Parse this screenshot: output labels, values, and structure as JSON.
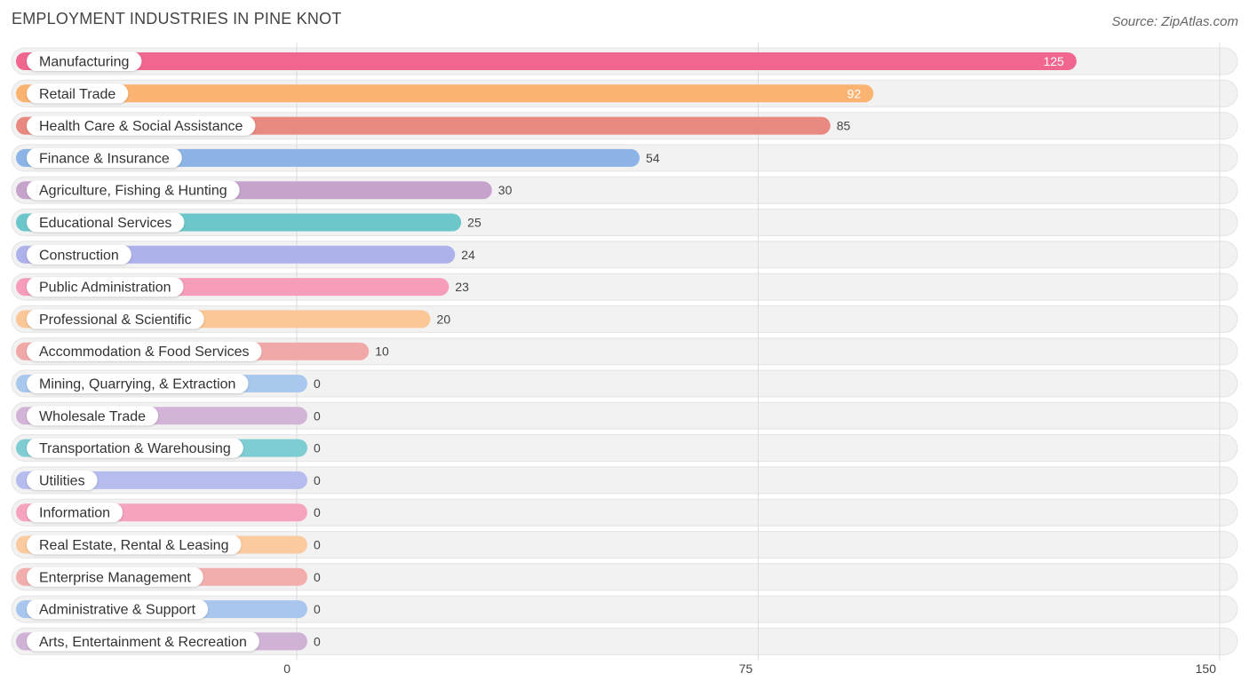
{
  "header": {
    "title": "EMPLOYMENT INDUSTRIES IN PINE KNOT",
    "source": "Source: ZipAtlas.com"
  },
  "chart_data": {
    "type": "bar",
    "orientation": "horizontal",
    "title": "EMPLOYMENT INDUSTRIES IN PINE KNOT",
    "categories": [
      "Manufacturing",
      "Retail Trade",
      "Health Care & Social Assistance",
      "Finance & Insurance",
      "Agriculture, Fishing & Hunting",
      "Educational Services",
      "Construction",
      "Public Administration",
      "Professional & Scientific",
      "Accommodation & Food Services",
      "Mining, Quarrying, & Extraction",
      "Wholesale Trade",
      "Transportation & Warehousing",
      "Utilities",
      "Information",
      "Real Estate, Rental & Leasing",
      "Enterprise Management",
      "Administrative & Support",
      "Arts, Entertainment & Recreation"
    ],
    "values": [
      125,
      92,
      85,
      54,
      30,
      25,
      24,
      23,
      20,
      10,
      0,
      0,
      0,
      0,
      0,
      0,
      0,
      0,
      0
    ],
    "value_labels": [
      "125",
      "92",
      "85",
      "54",
      "30",
      "25",
      "24",
      "23",
      "20",
      "10",
      "0",
      "0",
      "0",
      "0",
      "0",
      "0",
      "0",
      "0",
      "0"
    ],
    "colors": [
      "#f0668f",
      "#fbb371",
      "#e98a82",
      "#8db4e6",
      "#c5a3cb",
      "#6cc7cb",
      "#aeb2ea",
      "#f69dba",
      "#fbc796",
      "#f1a9a8",
      "#a9c8ee",
      "#d3b3d7",
      "#7ecdd2",
      "#b6bcee",
      "#f6a3be",
      "#fbcb9f",
      "#f2aeac",
      "#a9c7ee",
      "#d0b2d6"
    ],
    "xlim": [
      0,
      150
    ],
    "xticks": [
      0,
      75,
      150
    ],
    "xtick_labels": [
      "0",
      "75",
      "150"
    ],
    "grid": true
  }
}
